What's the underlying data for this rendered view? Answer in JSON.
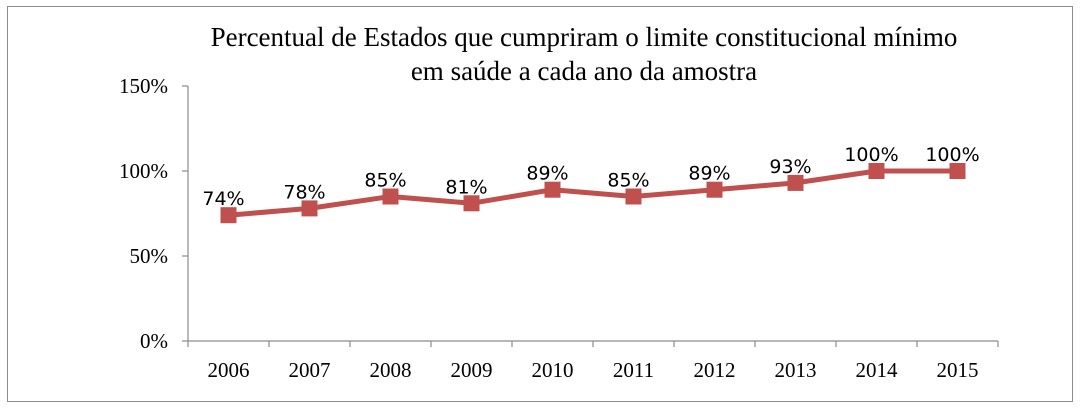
{
  "chart_data": {
    "type": "line",
    "title_lines": [
      "Percentual de Estados que cumpriram o limite constitucional mínimo",
      "em saúde a cada ano da amostra"
    ],
    "categories": [
      "2006",
      "2007",
      "2008",
      "2009",
      "2010",
      "2011",
      "2012",
      "2013",
      "2014",
      "2015"
    ],
    "series": [
      {
        "values": [
          74,
          78,
          85,
          81,
          89,
          85,
          89,
          93,
          100,
          100
        ],
        "labels": [
          "74%",
          "78%",
          "85%",
          "81%",
          "89%",
          "85%",
          "89%",
          "93%",
          "100%",
          "100%"
        ],
        "color": "#c0504d"
      }
    ],
    "y_ticks": [
      {
        "value": 0,
        "label": "0%"
      },
      {
        "value": 50,
        "label": "50%"
      },
      {
        "value": 100,
        "label": "100%"
      },
      {
        "value": 150,
        "label": "150%"
      }
    ],
    "ylim": [
      0,
      150
    ],
    "grid": false,
    "legend": "none"
  }
}
